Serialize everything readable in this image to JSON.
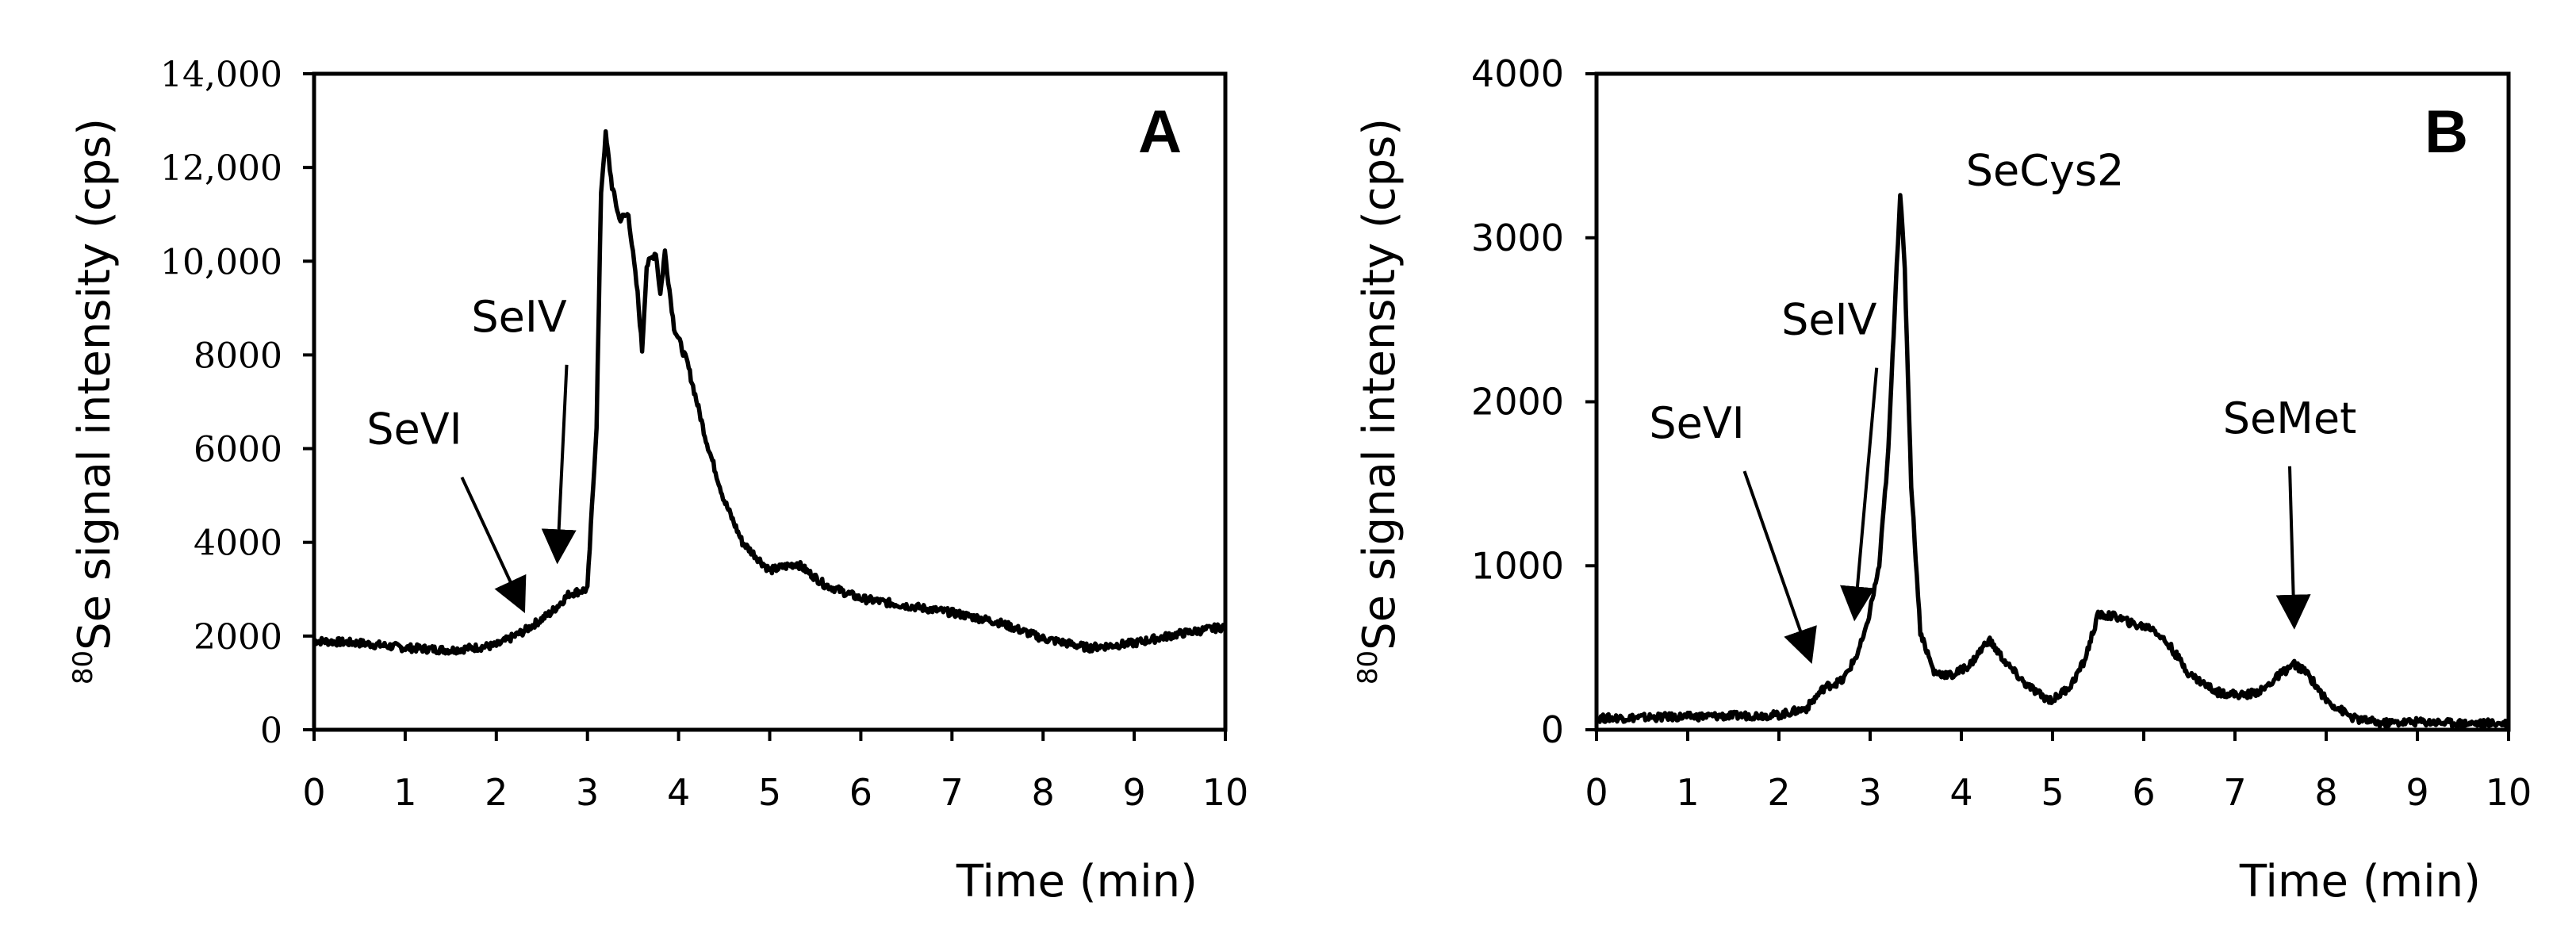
{
  "chart_data": [
    {
      "type": "line",
      "panel_label": "A",
      "xlabel": "Time (min)",
      "ylabel_superscript": "80",
      "ylabel": "Se signal intensity (cps)",
      "xlim": [
        0,
        10
      ],
      "ylim": [
        0,
        14000
      ],
      "xticks": [
        0,
        1,
        2,
        3,
        4,
        5,
        6,
        7,
        8,
        9,
        10
      ],
      "xtick_labels": [
        "0",
        "1",
        "2",
        "3",
        "4",
        "5",
        "6",
        "7",
        "8",
        "9",
        "10"
      ],
      "yticks": [
        0,
        2000,
        4000,
        6000,
        8000,
        10000,
        12000,
        14000
      ],
      "ytick_labels": [
        "0",
        "2000",
        "4000",
        "6000",
        "8000",
        "10,000",
        "12,000",
        "14,000"
      ],
      "series": [
        {
          "name": "Se signal",
          "points": [
            [
              0,
              1900
            ],
            [
              0.5,
              1850
            ],
            [
              1,
              1750
            ],
            [
              1.5,
              1700
            ],
            [
              2,
              1800
            ],
            [
              2.3,
              2100
            ],
            [
              2.6,
              2500
            ],
            [
              2.8,
              2900
            ],
            [
              3.0,
              3000
            ],
            [
              3.1,
              6500
            ],
            [
              3.15,
              11500
            ],
            [
              3.2,
              12700
            ],
            [
              3.27,
              11600
            ],
            [
              3.35,
              10900
            ],
            [
              3.45,
              11000
            ],
            [
              3.55,
              9300
            ],
            [
              3.6,
              8100
            ],
            [
              3.65,
              9900
            ],
            [
              3.75,
              10200
            ],
            [
              3.8,
              9300
            ],
            [
              3.85,
              10200
            ],
            [
              3.95,
              8600
            ],
            [
              4.1,
              7800
            ],
            [
              4.3,
              6200
            ],
            [
              4.5,
              4900
            ],
            [
              4.7,
              4000
            ],
            [
              5.0,
              3400
            ],
            [
              5.3,
              3550
            ],
            [
              5.6,
              3100
            ],
            [
              6.0,
              2800
            ],
            [
              6.5,
              2650
            ],
            [
              7.0,
              2500
            ],
            [
              7.5,
              2300
            ],
            [
              8.0,
              1950
            ],
            [
              8.5,
              1750
            ],
            [
              9.0,
              1850
            ],
            [
              9.5,
              2050
            ],
            [
              10.0,
              2200
            ]
          ]
        }
      ],
      "annotations": [
        {
          "text": "SeVI",
          "target": [
            2.3,
            2550
          ],
          "label_at": [
            1.1,
            6100
          ]
        },
        {
          "text": "SeIV",
          "target": [
            2.67,
            3600
          ],
          "label_at": [
            2.25,
            8500
          ]
        }
      ]
    },
    {
      "type": "line",
      "panel_label": "B",
      "xlabel": "Time (min)",
      "ylabel_superscript": "80",
      "ylabel": "Se signal intensity (cps)",
      "xlim": [
        0,
        10
      ],
      "ylim": [
        0,
        4000
      ],
      "xticks": [
        0,
        1,
        2,
        3,
        4,
        5,
        6,
        7,
        8,
        9,
        10
      ],
      "xtick_labels": [
        "0",
        "1",
        "2",
        "3",
        "4",
        "5",
        "6",
        "7",
        "8",
        "9",
        "10"
      ],
      "yticks": [
        0,
        1000,
        2000,
        3000,
        4000
      ],
      "ytick_labels": [
        "0",
        "1000",
        "2000",
        "3000",
        "4000"
      ],
      "series": [
        {
          "name": "Se signal",
          "points": [
            [
              0,
              70
            ],
            [
              0.5,
              75
            ],
            [
              1,
              80
            ],
            [
              1.5,
              85
            ],
            [
              2,
              90
            ],
            [
              2.3,
              130
            ],
            [
              2.5,
              260
            ],
            [
              2.7,
              300
            ],
            [
              2.85,
              450
            ],
            [
              2.95,
              600
            ],
            [
              3.1,
              1000
            ],
            [
              3.2,
              1700
            ],
            [
              3.28,
              2700
            ],
            [
              3.33,
              3270
            ],
            [
              3.38,
              2800
            ],
            [
              3.45,
              1500
            ],
            [
              3.55,
              600
            ],
            [
              3.7,
              350
            ],
            [
              3.9,
              330
            ],
            [
              4.1,
              400
            ],
            [
              4.3,
              550
            ],
            [
              4.5,
              400
            ],
            [
              4.7,
              280
            ],
            [
              4.9,
              200
            ],
            [
              5.0,
              180
            ],
            [
              5.2,
              270
            ],
            [
              5.35,
              420
            ],
            [
              5.5,
              700
            ],
            [
              5.7,
              690
            ],
            [
              5.9,
              640
            ],
            [
              6.1,
              620
            ],
            [
              6.3,
              500
            ],
            [
              6.5,
              340
            ],
            [
              6.8,
              230
            ],
            [
              7.1,
              210
            ],
            [
              7.3,
              240
            ],
            [
              7.5,
              340
            ],
            [
              7.65,
              400
            ],
            [
              7.8,
              340
            ],
            [
              8.0,
              180
            ],
            [
              8.3,
              70
            ],
            [
              8.6,
              40
            ],
            [
              9.0,
              50
            ],
            [
              9.5,
              40
            ],
            [
              10.0,
              40
            ]
          ]
        }
      ],
      "annotations": [
        {
          "text": "SeVI",
          "target": [
            2.35,
            420
          ],
          "label_at": [
            1.1,
            1780
          ]
        },
        {
          "text": "SeIV",
          "target": [
            2.83,
            680
          ],
          "label_at": [
            2.55,
            2410
          ]
        },
        {
          "text": "SeCys2",
          "target": [
            3.33,
            3270
          ],
          "label_at": [
            4.05,
            3320
          ]
        },
        {
          "text": "SeMet",
          "target": [
            7.65,
            630
          ],
          "label_at": [
            7.6,
            1810
          ]
        }
      ]
    }
  ]
}
